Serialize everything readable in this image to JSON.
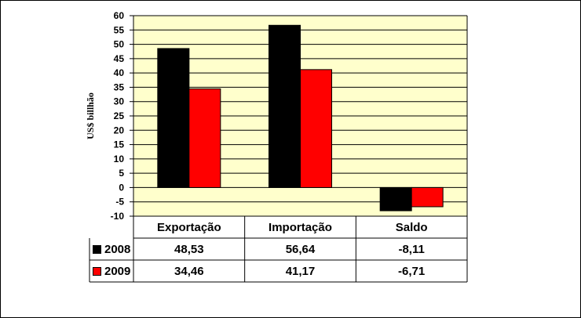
{
  "chart_data": {
    "type": "bar",
    "categories": [
      "Exportação",
      "Importação",
      "Saldo"
    ],
    "series": [
      {
        "name": "2008",
        "values": [
          48.53,
          56.64,
          -8.11
        ],
        "color": "#000000"
      },
      {
        "name": "2009",
        "values": [
          34.46,
          41.17,
          -6.71
        ],
        "color": "#ff0000"
      }
    ],
    "ylabel": "US$ billhão",
    "ylim": [
      -10,
      60
    ],
    "yticks": [
      "60",
      "55",
      "50",
      "45",
      "40",
      "35",
      "30",
      "25",
      "20",
      "15",
      "10",
      "5",
      "0",
      "-5",
      "-10"
    ],
    "grid": true,
    "plot_background": "#ffffcc",
    "data_table": {
      "rows": [
        {
          "label": "2008",
          "cells": [
            "48,53",
            "56,64",
            "-8,11"
          ]
        },
        {
          "label": "2009",
          "cells": [
            "34,46",
            "41,17",
            "-6,71"
          ]
        }
      ]
    }
  }
}
